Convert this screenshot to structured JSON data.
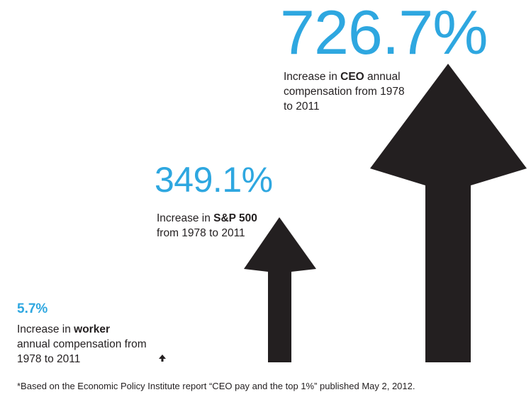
{
  "chart_data": {
    "type": "bar",
    "categories": [
      "worker",
      "S&P 500",
      "CEO"
    ],
    "values": [
      5.7,
      349.1,
      726.7
    ],
    "value_labels": [
      "5.7%",
      "349.1%",
      "726.7%"
    ]
  },
  "items": [
    {
      "value_label": "726.7%",
      "desc_pre": "Increase in ",
      "desc_bold": "CEO",
      "desc_post": " annual compensation from 1978 to 2011"
    },
    {
      "value_label": "349.1%",
      "desc_pre": "Increase in ",
      "desc_bold": "S&P 500",
      "desc_post": "from 1978 to 2011"
    },
    {
      "value_label": "5.7%",
      "desc_pre": "Increase in ",
      "desc_bold": "worker",
      "desc_post": "annual compensation from 1978 to 2011"
    }
  ],
  "footnote": "*Based on the Economic Policy Institute report “CEO pay and the top 1%” published May 2, 2012.",
  "colors": {
    "accent": "#2ea7e0",
    "arrow": "#231f20",
    "text": "#231f20"
  }
}
